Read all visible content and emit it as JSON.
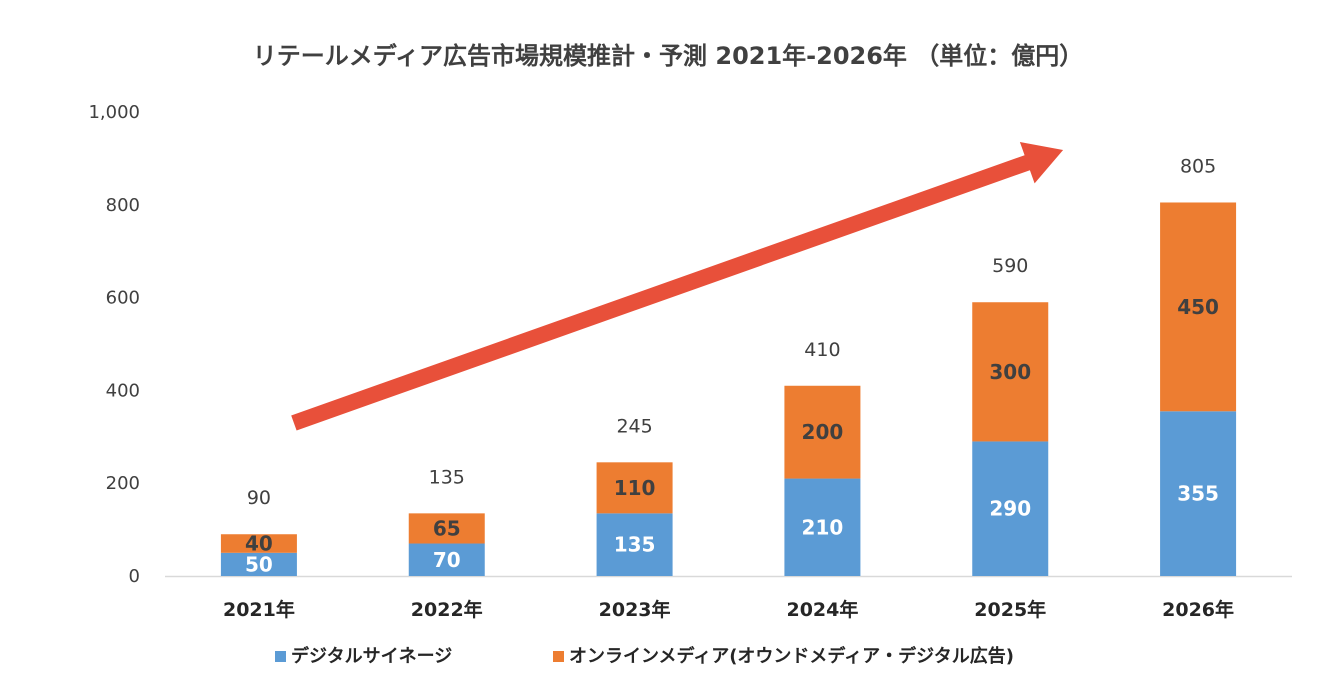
{
  "chart_data": {
    "type": "bar",
    "stacked": true,
    "title": "リテールメディア広告市場規模推計・予測 2021年-2026年 （単位：億円）",
    "xlabel": "",
    "ylabel": "",
    "categories": [
      "2021年",
      "2022年",
      "2023年",
      "2024年",
      "2025年",
      "2026年"
    ],
    "series": [
      {
        "name": "デジタルサイネージ",
        "color": "#5B9BD5",
        "label_color": "#FFFFFF",
        "values": [
          50,
          70,
          135,
          210,
          290,
          355
        ]
      },
      {
        "name": "オンラインメディア(オウンドメディア・デジタル広告)",
        "color": "#ED7D31",
        "label_color": "#404040",
        "values": [
          40,
          65,
          110,
          200,
          300,
          450
        ]
      }
    ],
    "totals": [
      90,
      135,
      245,
      410,
      590,
      805
    ],
    "ylim": [
      0,
      1000
    ],
    "yticks": [
      0,
      200,
      400,
      600,
      800,
      1000
    ],
    "ytick_labels": [
      "0",
      "200",
      "400",
      "600",
      "800",
      "1,000"
    ],
    "grid": false,
    "legend_position": "bottom",
    "annotation": {
      "type": "trend-arrow",
      "color": "#E8503A",
      "from_category": "2021年",
      "to_category": "2026年"
    }
  }
}
